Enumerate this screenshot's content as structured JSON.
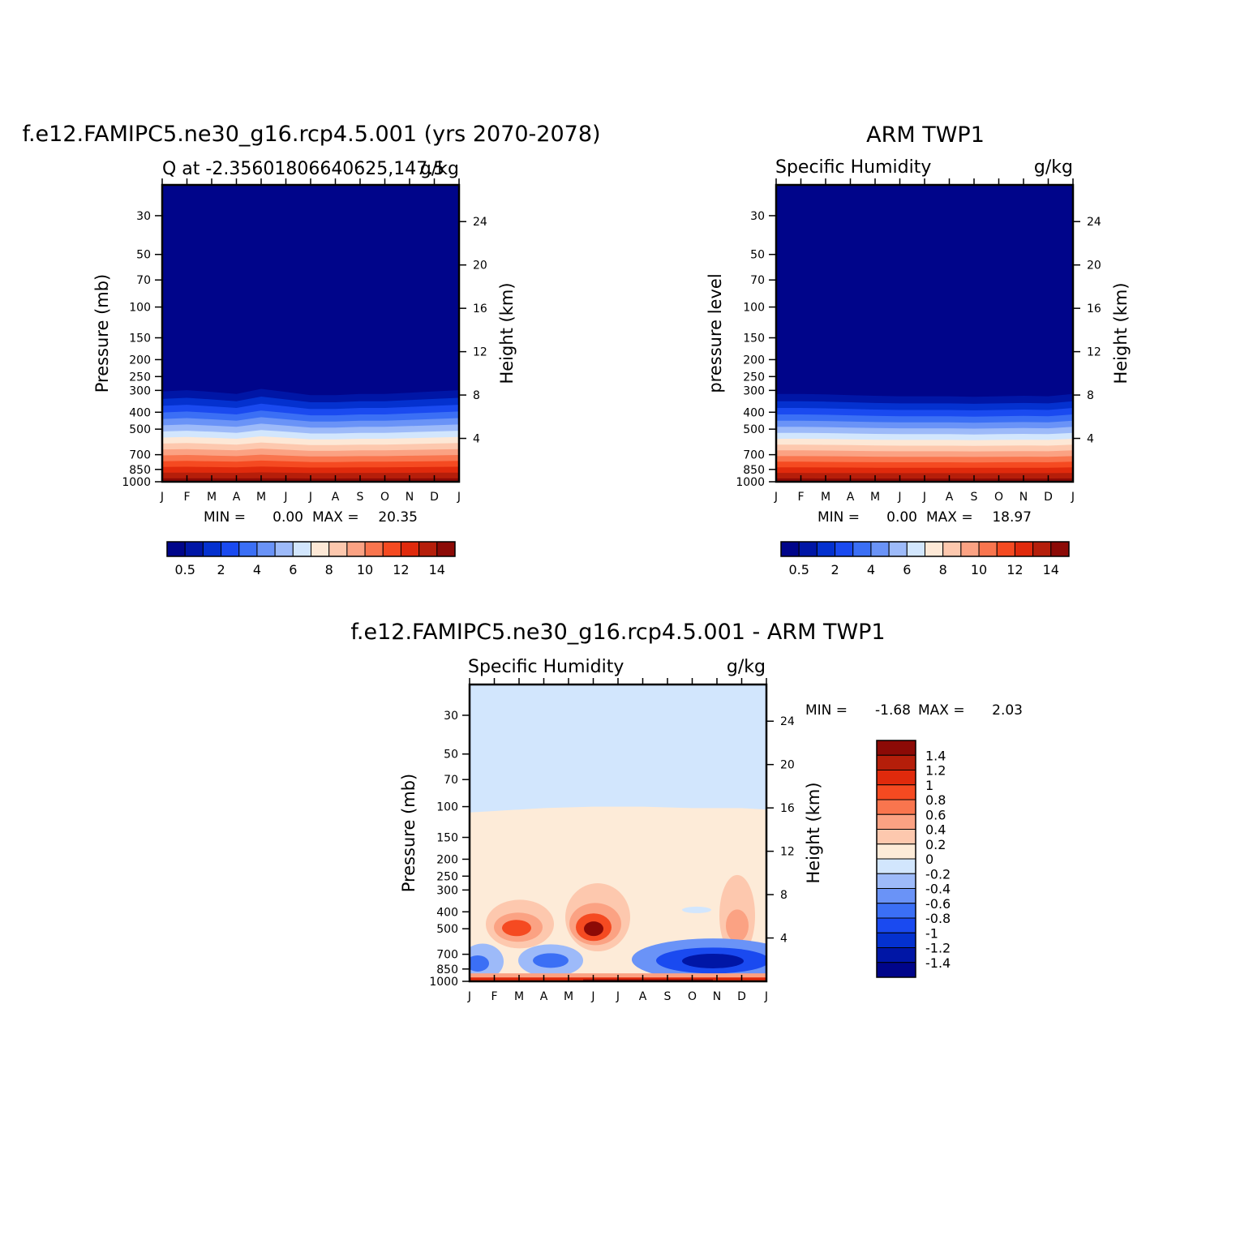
{
  "figure": {
    "top_left_title": "f.e12.FAMIPC5.ne30_g16.rcp4.5.001 (yrs 2070-2078)",
    "top_right_title": "ARM TWP1",
    "bottom_title": "f.e12.FAMIPC5.ne30_g16.rcp4.5.001 - ARM TWP1"
  },
  "colors": {
    "seq": [
      "#00058a",
      "#0016a6",
      "#0431cf",
      "#1a4af0",
      "#3b6ff5",
      "#6a93f7",
      "#9dbaf9",
      "#d2e6fd",
      "#fde8d6",
      "#fdc8ae",
      "#fba283",
      "#f9754e",
      "#f54a21",
      "#e02a0c",
      "#b51e0a",
      "#8c0a06"
    ],
    "diff": [
      "#00058a",
      "#0016a6",
      "#0431cf",
      "#1a4af0",
      "#3b6ff5",
      "#6a93f7",
      "#9dbaf9",
      "#d2e6fd",
      "#fdebd8",
      "#fdc8ae",
      "#fba283",
      "#f9754e",
      "#f54a21",
      "#e02a0c",
      "#b51e0a",
      "#8c0a06"
    ]
  },
  "chart_data": [
    {
      "type": "contour",
      "id": "model",
      "title": "f.e12.FAMIPC5.ne30_g16.rcp4.5.001 (yrs 2070-2078)",
      "left_string": "Q at -2.35601806640625,147.5",
      "right_string": "g/kg",
      "xlabel": "",
      "ylabel": "Pressure (mb)",
      "y2label": "Height (km)",
      "x_ticks": [
        "J",
        "F",
        "M",
        "A",
        "M",
        "J",
        "J",
        "A",
        "S",
        "O",
        "N",
        "D",
        "J"
      ],
      "y_ticks": [
        30,
        50,
        70,
        100,
        150,
        200,
        250,
        300,
        400,
        500,
        700,
        850,
        1000
      ],
      "y2_ticks": [
        24,
        20,
        16,
        12,
        8,
        4
      ],
      "ylim": [
        1000,
        20
      ],
      "stats": {
        "min_label": "MIN =",
        "min": "0.00",
        "max_label": "MAX =",
        "max": "20.35"
      },
      "colorbar": {
        "orientation": "horizontal",
        "labels": [
          "0.5",
          "2",
          "4",
          "6",
          "8",
          "10",
          "12",
          "14"
        ]
      },
      "field": "sequential",
      "moist_level_mb": [
        290,
        285,
        292,
        300,
        280,
        292,
        305,
        305,
        300,
        300,
        295,
        290,
        285
      ]
    },
    {
      "type": "contour",
      "id": "obs",
      "title": "ARM TWP1",
      "left_string": "Specific Humidity",
      "right_string": "g/kg",
      "xlabel": "",
      "ylabel": "pressure level",
      "y2label": "Height (km)",
      "x_ticks": [
        "J",
        "F",
        "M",
        "A",
        "M",
        "J",
        "J",
        "A",
        "S",
        "O",
        "N",
        "D",
        "J"
      ],
      "y_ticks": [
        30,
        50,
        70,
        100,
        150,
        200,
        250,
        300,
        400,
        500,
        700,
        850,
        1000
      ],
      "y2_ticks": [
        24,
        20,
        16,
        12,
        8,
        4
      ],
      "ylim": [
        1000,
        20
      ],
      "stats": {
        "min_label": "MIN =",
        "min": "0.00",
        "max_label": "MAX =",
        "max": "18.97"
      },
      "colorbar": {
        "orientation": "horizontal",
        "labels": [
          "0.5",
          "2",
          "4",
          "6",
          "8",
          "10",
          "12",
          "14"
        ]
      },
      "field": "sequential",
      "moist_level_mb": [
        300,
        300,
        302,
        305,
        308,
        310,
        310,
        310,
        312,
        310,
        308,
        310,
        300
      ]
    },
    {
      "type": "contour",
      "id": "diff",
      "title": "f.e12.FAMIPC5.ne30_g16.rcp4.5.001 - ARM TWP1",
      "left_string": "Specific Humidity",
      "right_string": "g/kg",
      "xlabel": "",
      "ylabel": "Pressure (mb)",
      "y2label": "Height (km)",
      "x_ticks": [
        "J",
        "F",
        "M",
        "A",
        "M",
        "J",
        "J",
        "A",
        "S",
        "O",
        "N",
        "D",
        "J"
      ],
      "y_ticks": [
        30,
        50,
        70,
        100,
        150,
        200,
        250,
        300,
        400,
        500,
        700,
        850,
        1000
      ],
      "y2_ticks": [
        24,
        20,
        16,
        12,
        8,
        4
      ],
      "ylim": [
        1000,
        20
      ],
      "stats": {
        "min_label": "MIN =",
        "min": "-1.68",
        "max_label": "MAX =",
        "max": "2.03"
      },
      "colorbar": {
        "orientation": "vertical",
        "labels": [
          "1.4",
          "1.2",
          "1",
          "0.8",
          "0.6",
          "0.4",
          "0.2",
          "0",
          "-0.2",
          "-0.4",
          "-0.6",
          "-0.8",
          "-1",
          "-1.2",
          "-1.4"
        ]
      },
      "field": "difference",
      "zero_line_mb": [
        108,
        106,
        104,
        102,
        101,
        100,
        100,
        100,
        101,
        102,
        102,
        102,
        104
      ]
    }
  ]
}
